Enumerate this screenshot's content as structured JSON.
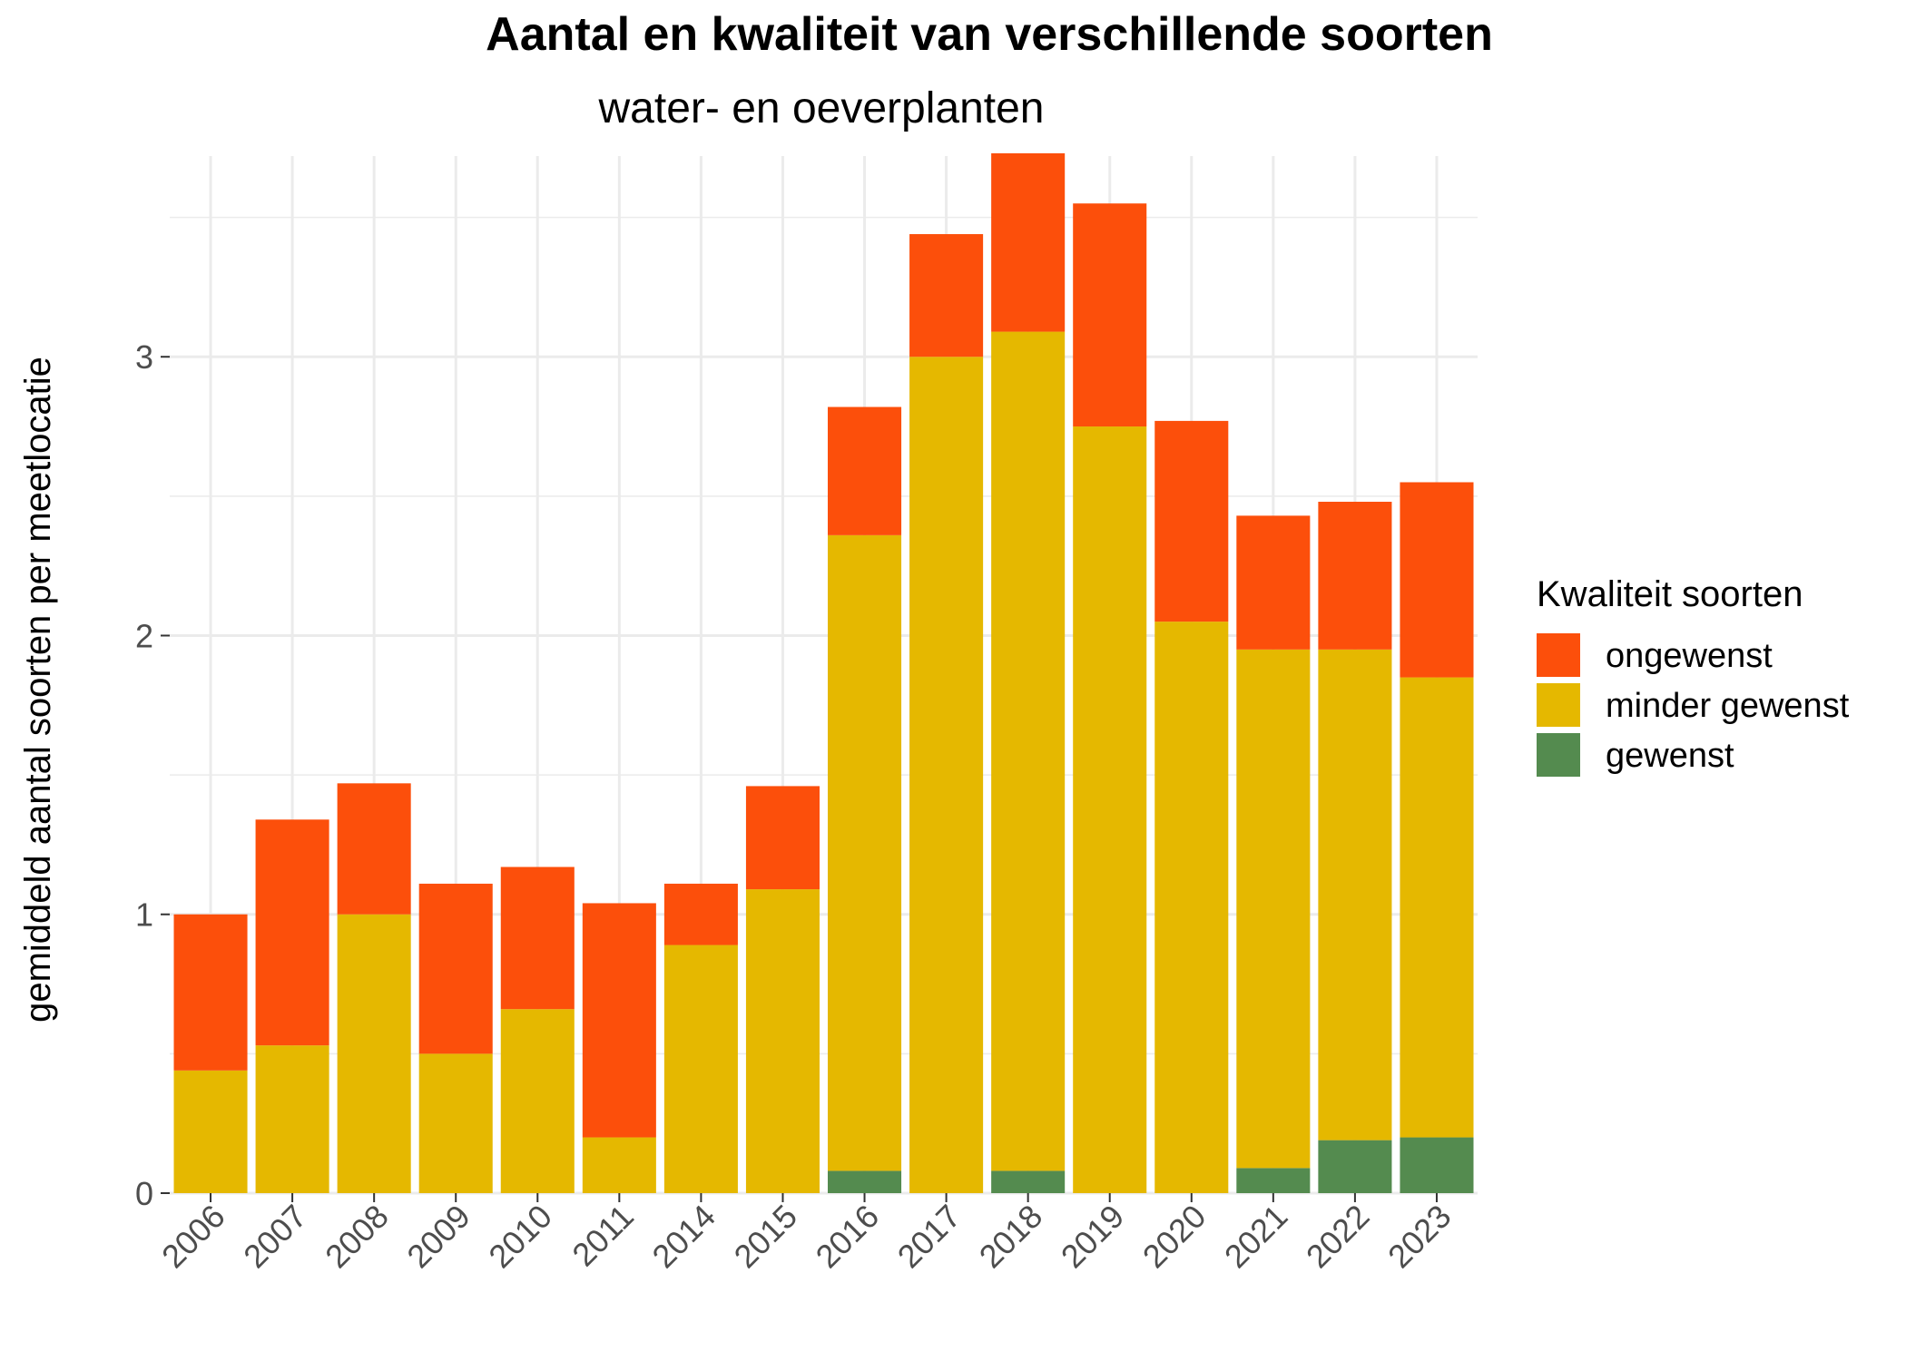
{
  "chart_data": {
    "type": "bar",
    "stacked": true,
    "title": "Aantal en kwaliteit van verschillende soorten",
    "subtitle": "water- en oeverplanten",
    "xlabel": "",
    "ylabel": "gemiddeld aantal soorten per meetlocatie",
    "ylim": [
      0,
      3.72
    ],
    "yticks": [
      0,
      1,
      2,
      3
    ],
    "grid": true,
    "legend_placement": "right",
    "categories": [
      "2006",
      "2007",
      "2008",
      "2009",
      "2010",
      "2011",
      "2014",
      "2015",
      "2016",
      "2017",
      "2018",
      "2019",
      "2020",
      "2021",
      "2022",
      "2023"
    ],
    "series": [
      {
        "name": "gewenst",
        "color": "#548b4f",
        "values": [
          0,
          0,
          0,
          0,
          0,
          0,
          0,
          0,
          0.08,
          0,
          0.08,
          0,
          0,
          0.09,
          0.19,
          0.2
        ]
      },
      {
        "name": "minder gewenst",
        "color": "#e5b800",
        "values": [
          0.44,
          0.53,
          1.0,
          0.5,
          0.66,
          0.2,
          0.89,
          1.09,
          2.28,
          3.0,
          3.01,
          2.75,
          2.05,
          1.86,
          1.76,
          1.65
        ]
      },
      {
        "name": "ongewenst",
        "color": "#fc4f0b",
        "values": [
          0.56,
          0.81,
          0.47,
          0.61,
          0.51,
          0.84,
          0.22,
          0.37,
          0.46,
          0.44,
          0.64,
          0.8,
          0.72,
          0.48,
          0.53,
          0.7
        ]
      }
    ],
    "legend_title": "Kwaliteit soorten",
    "legend_order": [
      "ongewenst",
      "minder gewenst",
      "gewenst"
    ]
  }
}
